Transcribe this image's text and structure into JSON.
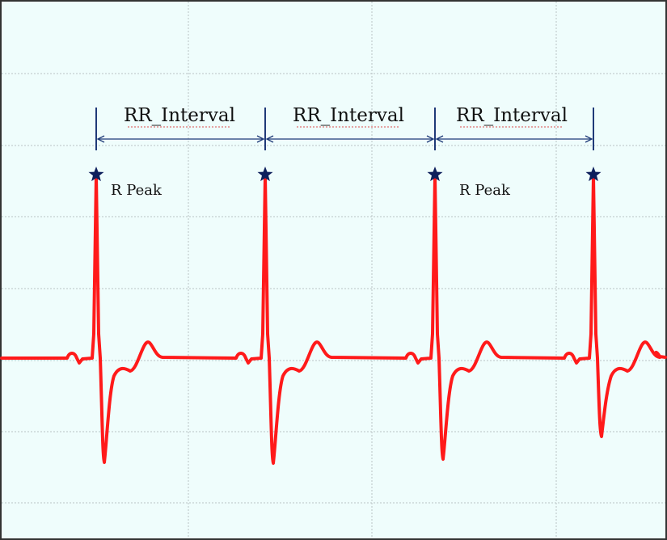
{
  "labels": {
    "rr_interval_1": "RR_Interval",
    "rr_interval_2": "RR_Interval",
    "rr_interval_3": "RR_Interval",
    "r_peak_1": "R Peak",
    "r_peak_2": "R Peak"
  },
  "colors": {
    "background": "#effdfc",
    "grid": "#b9c2c4",
    "ecg_trace": "#ff1a1a",
    "marker": "#0d1f5c",
    "annotation_line": "#1f3a78",
    "border": "#333333"
  },
  "icons": {
    "r_peak_marker": "star-icon"
  }
}
